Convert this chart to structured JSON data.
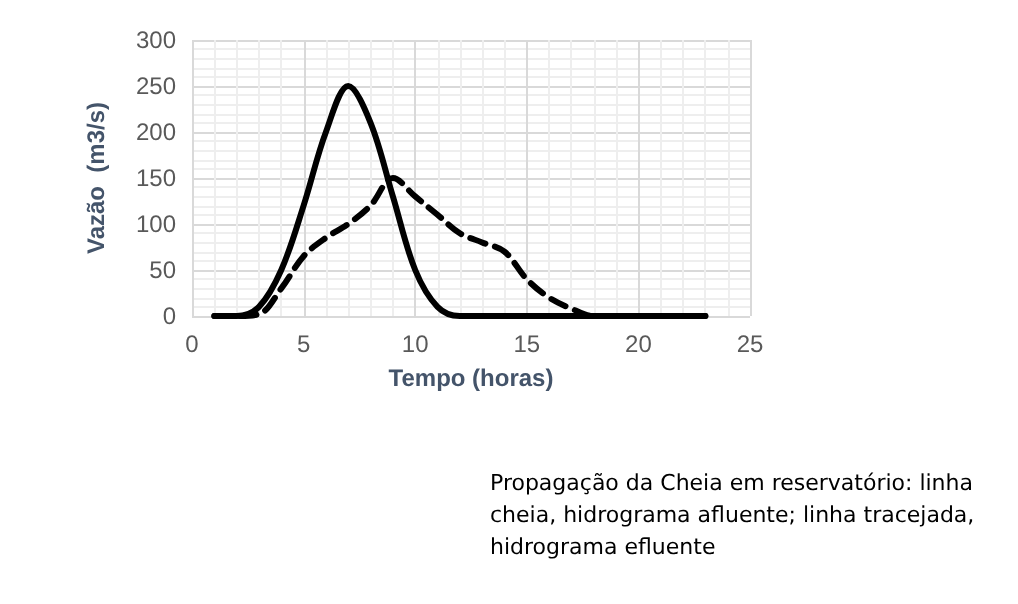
{
  "chart_data": {
    "type": "line",
    "xlabel": "Tempo (horas)",
    "ylabel": "Vazão  (m3/s)",
    "annotations": [
      "Propagação da Cheia em reservatório: linha cheia, hidrograma afluente; linha tracejada, hidrograma efluente"
    ],
    "x": [
      1,
      2,
      3,
      4,
      5,
      6,
      7,
      8,
      9,
      10,
      11,
      12,
      13,
      14,
      15,
      16,
      17,
      18,
      19,
      20,
      21,
      22,
      23
    ],
    "series": [
      {
        "color": "#000000",
        "line_style": "solid",
        "values": [
          0,
          0,
          10,
          50,
          120,
          200,
          250,
          210,
          130,
          50,
          10,
          0,
          0,
          0,
          0,
          0,
          0,
          0,
          0,
          0,
          0,
          0,
          0
        ]
      },
      {
        "color": "#000000",
        "line_style": "dashed",
        "values": [
          0,
          0,
          2,
          30,
          65,
          85,
          100,
          120,
          150,
          130,
          110,
          90,
          80,
          70,
          40,
          20,
          8,
          0,
          0,
          0,
          0,
          0,
          0
        ]
      }
    ],
    "xlim": [
      0,
      25
    ],
    "xticks": [
      0,
      5,
      10,
      15,
      20,
      25
    ],
    "ylim": [
      0,
      300
    ],
    "yticks": [
      0,
      50,
      100,
      150,
      200,
      250,
      300
    ],
    "grid": true,
    "marker": "none"
  }
}
